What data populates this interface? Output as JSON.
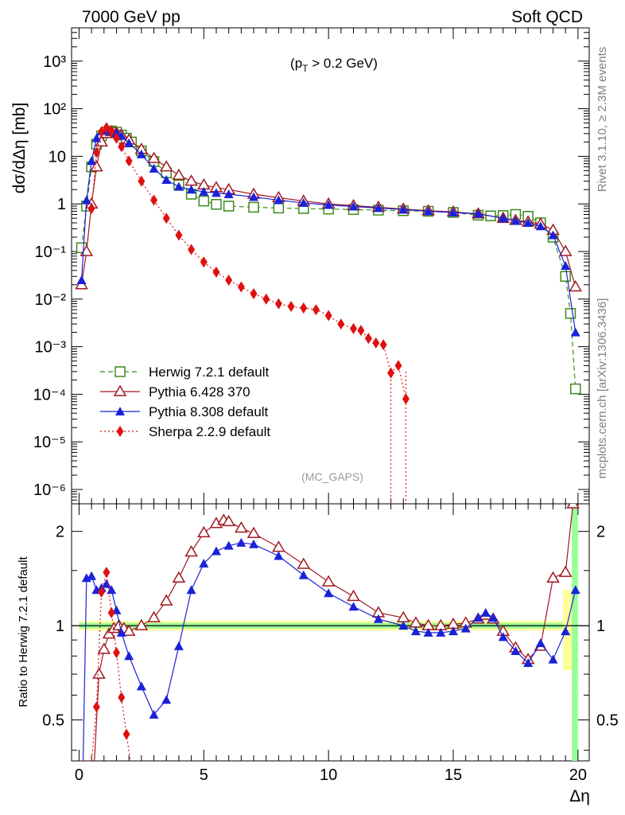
{
  "header": {
    "left": "7000 GeV pp",
    "right": "Soft QCD"
  },
  "annotations": {
    "cut": "(p_T > 0.2 GeV)",
    "watermark": "(MC_GAPS)",
    "side_top": "Rivet 3.1.10, ≥ 2.3M events",
    "side_bottom": "mcplots.cern.ch [arXiv:1306.3436]"
  },
  "axes": {
    "ylabel_main": "dσ/dΔη [mb]",
    "ylabel_ratio": "Ratio to Herwig 7.2.1 default",
    "xlabel": "Δη",
    "x_ticks": [
      "0",
      "5",
      "10",
      "15",
      "20"
    ],
    "y_ticks_main": [
      "10⁻⁶",
      "10⁻⁵",
      "10⁻⁴",
      "10⁻³",
      "10⁻²",
      "10⁻¹",
      "1",
      "10",
      "10²",
      "10³"
    ],
    "y_ticks_ratio": [
      "0.5",
      "1",
      "2"
    ]
  },
  "colors": {
    "herwig": "#3a8a1a",
    "pythia6": "#a01822",
    "pythia8": "#1a22d8",
    "sherpa": "#e01010",
    "band_yellow": "#ffff99",
    "band_green": "#99ff99"
  },
  "chart_data": {
    "type": "line",
    "x_range": [
      -0.3,
      20.45
    ],
    "main": {
      "y_scale": "log",
      "ylim": [
        5e-07,
        5000
      ]
    },
    "ratio": {
      "y_scale": "log",
      "ylim": [
        0.37,
        2.45
      ]
    },
    "legend_position": "center-left",
    "series": [
      {
        "name": "Herwig 7.2.1 default",
        "key": "herwig",
        "marker": "open-square",
        "line": "dashed",
        "x": [
          0.1,
          0.3,
          0.5,
          0.7,
          0.9,
          1.1,
          1.3,
          1.5,
          1.7,
          1.9,
          2.1,
          2.5,
          3.0,
          3.5,
          4.0,
          4.5,
          5.0,
          5.5,
          6.0,
          7.0,
          8.0,
          9.0,
          10.0,
          11.0,
          12.0,
          13.0,
          14.0,
          15.0,
          16.0,
          16.5,
          17.0,
          17.5,
          18.0,
          18.5,
          19.0,
          19.5,
          19.7,
          19.9
        ],
        "y": [
          0.12,
          0.9,
          6.0,
          18,
          27,
          32,
          34,
          32,
          28,
          24,
          20,
          13,
          7.8,
          4.5,
          2.5,
          1.6,
          1.15,
          0.98,
          0.9,
          0.85,
          0.82,
          0.8,
          0.78,
          0.76,
          0.74,
          0.72,
          0.7,
          0.66,
          0.58,
          0.56,
          0.57,
          0.6,
          0.55,
          0.4,
          0.2,
          0.03,
          0.005,
          0.00013
        ]
      },
      {
        "name": "Pythia 6.428 370",
        "key": "pythia6",
        "marker": "open-triangle",
        "line": "solid",
        "x": [
          0.1,
          0.3,
          0.5,
          0.7,
          0.9,
          1.1,
          1.3,
          1.5,
          1.7,
          2.0,
          2.5,
          3.0,
          3.5,
          4.0,
          4.5,
          5.0,
          5.5,
          6.0,
          7.0,
          8.0,
          9.0,
          10.0,
          11.0,
          12.0,
          13.0,
          14.0,
          15.0,
          16.0,
          17.0,
          17.5,
          18.0,
          18.5,
          19.0,
          19.5,
          19.9
        ],
        "y": [
          0.02,
          0.1,
          1.0,
          6.0,
          20,
          30,
          33,
          31,
          28,
          22,
          14,
          9.0,
          6.0,
          4.0,
          3.0,
          2.5,
          2.2,
          2.0,
          1.6,
          1.35,
          1.15,
          1.0,
          0.92,
          0.85,
          0.78,
          0.72,
          0.68,
          0.62,
          0.5,
          0.45,
          0.42,
          0.38,
          0.28,
          0.1,
          0.018
        ]
      },
      {
        "name": "Pythia 8.308 default",
        "key": "pythia8",
        "marker": "filled-triangle",
        "line": "solid",
        "x": [
          0.1,
          0.3,
          0.5,
          0.7,
          0.9,
          1.1,
          1.3,
          1.5,
          1.7,
          2.0,
          2.5,
          3.0,
          3.5,
          4.0,
          4.5,
          5.0,
          5.5,
          6.0,
          7.0,
          8.0,
          9.0,
          10.0,
          11.0,
          12.0,
          13.0,
          14.0,
          15.0,
          16.0,
          17.0,
          17.5,
          18.0,
          18.5,
          19.0,
          19.5,
          19.9
        ],
        "y": [
          0.025,
          1.2,
          8.0,
          24,
          34,
          35,
          34,
          31,
          27,
          19,
          11,
          5.5,
          3.2,
          2.3,
          2.0,
          1.8,
          1.7,
          1.6,
          1.4,
          1.2,
          1.05,
          0.95,
          0.88,
          0.82,
          0.76,
          0.7,
          0.66,
          0.62,
          0.5,
          0.44,
          0.4,
          0.34,
          0.22,
          0.05,
          0.002
        ]
      },
      {
        "name": "Sherpa 2.2.9 default",
        "key": "sherpa",
        "marker": "filled-diamond",
        "line": "dotted",
        "x": [
          0.5,
          0.7,
          0.9,
          1.1,
          1.3,
          1.5,
          1.7,
          2.0,
          2.5,
          3.0,
          3.5,
          4.0,
          4.5,
          5.0,
          5.5,
          6.0,
          6.5,
          7.0,
          7.5,
          8.0,
          8.5,
          9.0,
          9.5,
          10.0,
          10.5,
          11.0,
          11.3,
          11.6,
          11.9,
          12.2,
          12.5,
          12.8,
          13.1
        ],
        "y": [
          0.8,
          12,
          33,
          40,
          33,
          24,
          16,
          8.0,
          3.0,
          1.2,
          0.5,
          0.22,
          0.11,
          0.06,
          0.037,
          0.025,
          0.018,
          0.013,
          0.01,
          0.008,
          0.007,
          0.0065,
          0.006,
          0.0045,
          0.003,
          0.0024,
          0.0022,
          0.0015,
          0.0012,
          0.0011,
          0.00028,
          0.0004,
          8e-05
        ]
      }
    ],
    "ratio_series": [
      {
        "key": "pythia6",
        "x": [
          0.6,
          0.8,
          1.0,
          1.2,
          1.4,
          1.6,
          1.8,
          2.0,
          2.5,
          3.0,
          3.5,
          4.0,
          4.5,
          5.0,
          5.5,
          5.8,
          6.0,
          6.5,
          7.0,
          8.0,
          9.0,
          10.0,
          11.0,
          12.0,
          13.0,
          13.5,
          14.0,
          14.5,
          15.0,
          15.5,
          16.0,
          16.3,
          16.6,
          17.0,
          17.5,
          18.0,
          18.5,
          19.0,
          19.5,
          19.8
        ],
        "y": [
          0.35,
          0.7,
          0.84,
          0.94,
          0.98,
          1.0,
          0.98,
          0.96,
          1.0,
          1.06,
          1.2,
          1.42,
          1.72,
          1.98,
          2.12,
          2.17,
          2.15,
          2.05,
          1.97,
          1.78,
          1.57,
          1.38,
          1.24,
          1.1,
          1.06,
          1.02,
          1.0,
          1.0,
          1.01,
          1.02,
          1.05,
          1.08,
          1.05,
          0.96,
          0.85,
          0.78,
          0.86,
          1.42,
          1.48,
          2.45
        ]
      },
      {
        "key": "pythia8",
        "x": [
          0.1,
          0.3,
          0.5,
          0.7,
          0.9,
          1.1,
          1.3,
          1.5,
          1.7,
          2.0,
          2.5,
          3.0,
          3.5,
          4.0,
          4.5,
          5.0,
          5.5,
          6.0,
          6.5,
          7.0,
          8.0,
          9.0,
          10.0,
          11.0,
          12.0,
          13.0,
          13.5,
          14.0,
          14.5,
          15.0,
          15.5,
          16.0,
          16.3,
          16.6,
          17.0,
          17.5,
          18.0,
          18.5,
          19.0,
          19.5,
          19.9
        ],
        "y": [
          0.2,
          1.42,
          1.44,
          1.3,
          1.32,
          1.36,
          1.3,
          1.12,
          0.95,
          0.8,
          0.64,
          0.52,
          0.58,
          0.86,
          1.3,
          1.58,
          1.73,
          1.8,
          1.84,
          1.82,
          1.67,
          1.45,
          1.27,
          1.15,
          1.05,
          1.0,
          0.96,
          0.95,
          0.95,
          0.96,
          0.98,
          1.06,
          1.1,
          1.06,
          0.92,
          0.83,
          0.76,
          0.88,
          0.78,
          0.96,
          1.3
        ]
      },
      {
        "key": "sherpa",
        "x": [
          0.1,
          0.3,
          0.5,
          0.7,
          0.9,
          1.1,
          1.3,
          1.5,
          1.7,
          1.9,
          2.1
        ],
        "y": [
          0.37,
          0.37,
          0.37,
          0.55,
          1.28,
          1.48,
          1.1,
          0.82,
          0.59,
          0.45,
          0.35
        ]
      }
    ]
  }
}
